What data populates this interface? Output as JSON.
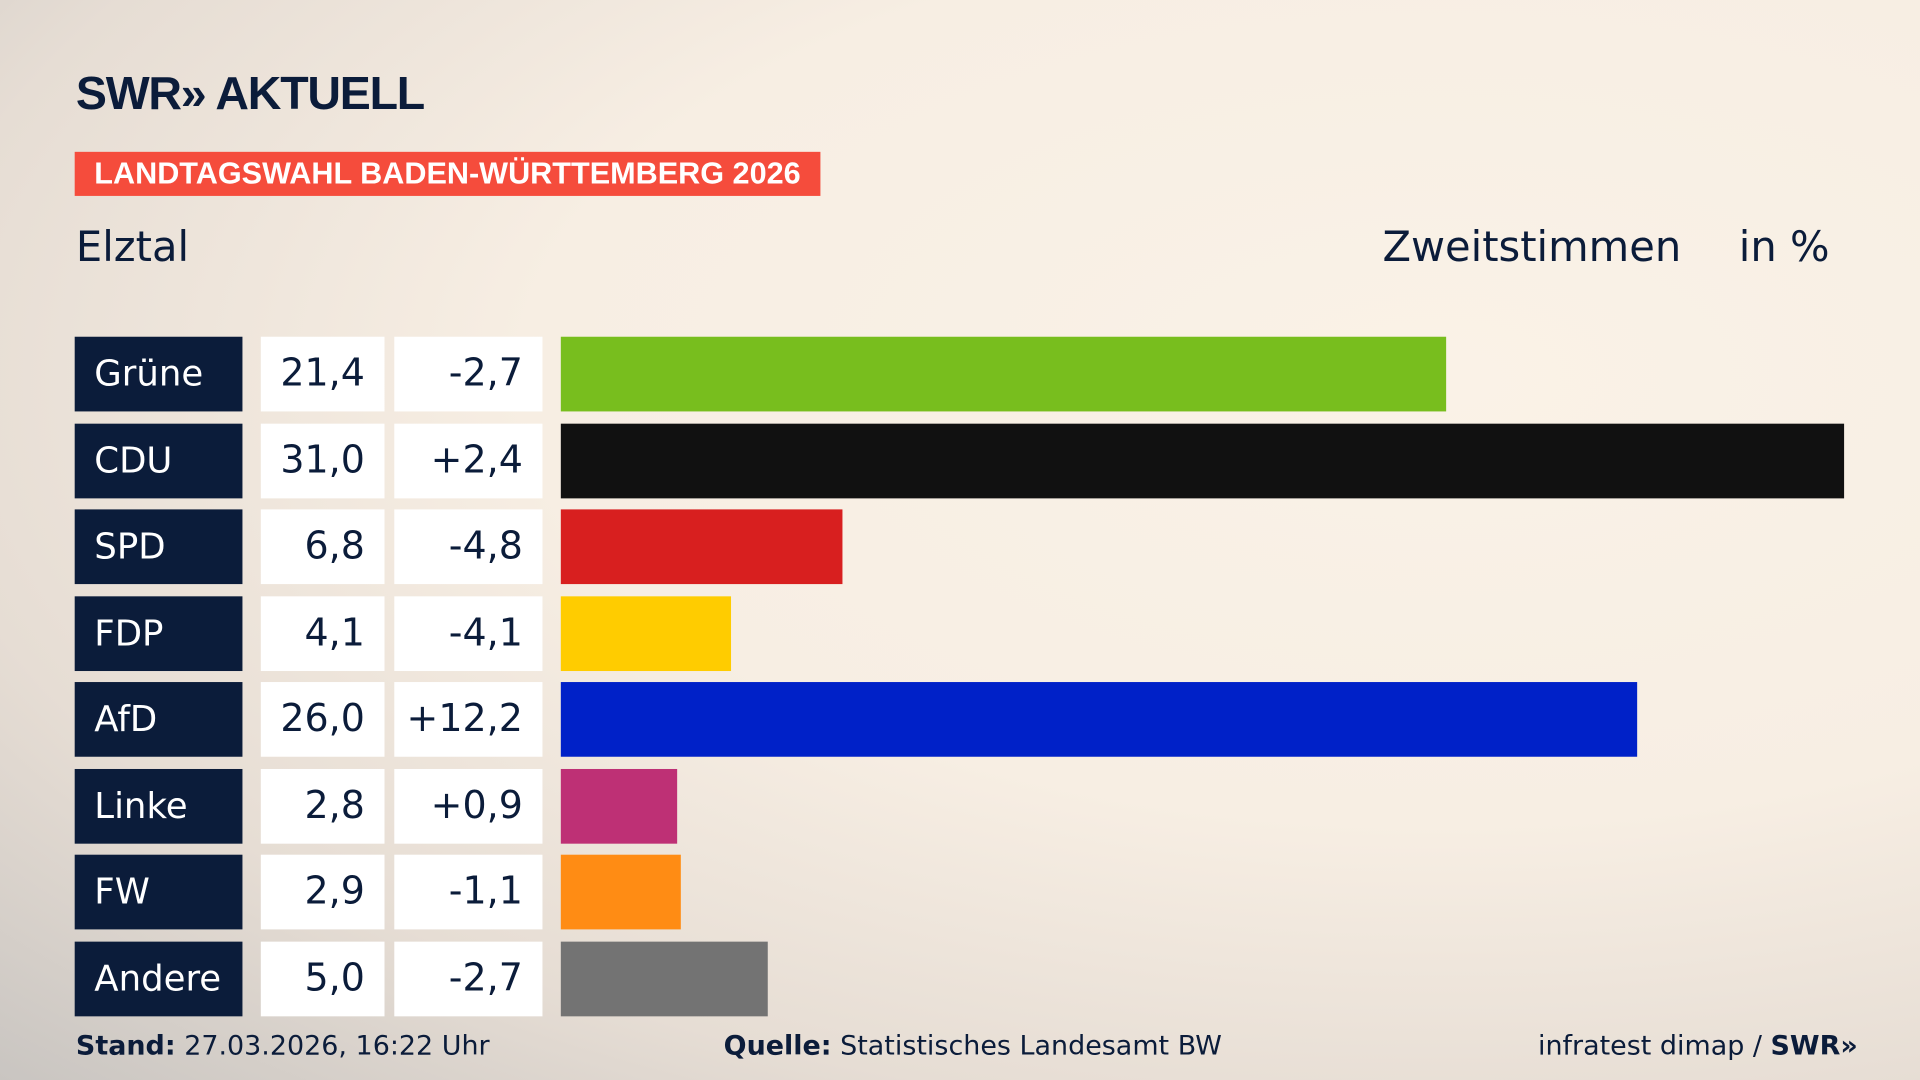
{
  "header": {
    "logo": "SWR» AKTUELL",
    "banner": "LANDTAGSWAHL BADEN-WÜRTTEMBERG 2026",
    "region": "Elztal",
    "vote_type": "Zweitstimmen",
    "unit": "in %"
  },
  "chart_data": {
    "type": "bar",
    "orientation": "horizontal",
    "categories": [
      "Grüne",
      "CDU",
      "SPD",
      "FDP",
      "AfD",
      "Linke",
      "FW",
      "Andere"
    ],
    "values": [
      21.4,
      31.0,
      6.8,
      4.1,
      26.0,
      2.8,
      2.9,
      5.0
    ],
    "value_labels": [
      "21,4",
      "31,0",
      "6,8",
      "4,1",
      "26,0",
      "2,8",
      "2,9",
      "5,0"
    ],
    "change_labels": [
      "-2,7",
      "+2,4",
      "-4,8",
      "-4,1",
      "+12,2",
      "+0,9",
      "-1,1",
      "-2,7"
    ],
    "changes": [
      -2.7,
      2.4,
      -4.8,
      -4.1,
      12.2,
      0.9,
      -1.1,
      -2.7
    ],
    "colors": [
      "#78be1e",
      "#111111",
      "#d81f1f",
      "#ffcc00",
      "#0021c8",
      "#be3075",
      "#ff8c14",
      "#737373"
    ],
    "ylabel": "Zweitstimmen",
    "unit": "in %"
  },
  "footer": {
    "stand_label": "Stand:",
    "stand_value": "27.03.2026, 16:22 Uhr",
    "source_label": "Quelle:",
    "source_value": "Statistisches Landesamt BW",
    "credit": "infratest dimap / ",
    "credit_logo": "SWR»"
  }
}
